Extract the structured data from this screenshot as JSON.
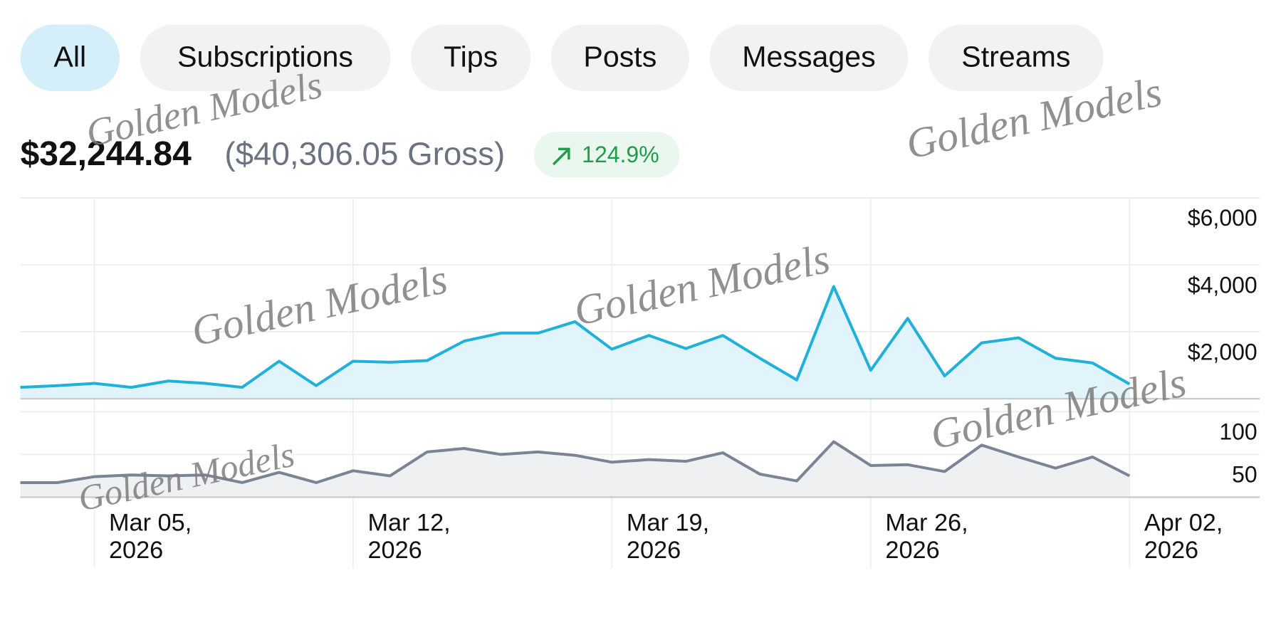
{
  "tabs": [
    "All",
    "Subscriptions",
    "Tips",
    "Posts",
    "Messages",
    "Streams"
  ],
  "active_tab": 0,
  "summary": {
    "net": "$32,244.84",
    "gross": "($40,306.05 Gross)",
    "change": "124.9%"
  },
  "watermark": "Golden Models",
  "chart_data": [
    {
      "type": "area",
      "color": "#1fb0dc",
      "fill": "#e1f3fb",
      "x": [
        "2026-03-03",
        "2026-03-04",
        "2026-03-05",
        "2026-03-06",
        "2026-03-07",
        "2026-03-08",
        "2026-03-09",
        "2026-03-10",
        "2026-03-11",
        "2026-03-12",
        "2026-03-13",
        "2026-03-14",
        "2026-03-15",
        "2026-03-16",
        "2026-03-17",
        "2026-03-18",
        "2026-03-19",
        "2026-03-20",
        "2026-03-21",
        "2026-03-22",
        "2026-03-23",
        "2026-03-24",
        "2026-03-25",
        "2026-03-26",
        "2026-03-27",
        "2026-03-28",
        "2026-03-29",
        "2026-03-30",
        "2026-03-31",
        "2026-04-01",
        "2026-04-02"
      ],
      "values": [
        340,
        390,
        460,
        340,
        530,
        460,
        340,
        1120,
        390,
        1120,
        1090,
        1140,
        1720,
        1960,
        1960,
        2300,
        1480,
        1890,
        1500,
        1890,
        1210,
        560,
        3350,
        850,
        2400,
        680,
        1670,
        1820,
        1210,
        1070,
        440
      ],
      "ylim": [
        0,
        6000
      ],
      "yticks": [
        {
          "value": 2000,
          "label": "$2,000"
        },
        {
          "value": 4000,
          "label": "$4,000"
        },
        {
          "value": 6000,
          "label": "$6,000"
        }
      ],
      "grid": true
    },
    {
      "type": "area",
      "color": "#7a8494",
      "fill": "#eff0f2",
      "x": [
        "2026-03-03",
        "2026-03-04",
        "2026-03-05",
        "2026-03-06",
        "2026-03-07",
        "2026-03-08",
        "2026-03-09",
        "2026-03-10",
        "2026-03-11",
        "2026-03-12",
        "2026-03-13",
        "2026-03-14",
        "2026-03-15",
        "2026-03-16",
        "2026-03-17",
        "2026-03-18",
        "2026-03-19",
        "2026-03-20",
        "2026-03-21",
        "2026-03-22",
        "2026-03-23",
        "2026-03-24",
        "2026-03-25",
        "2026-03-26",
        "2026-03-27",
        "2026-03-28",
        "2026-03-29",
        "2026-03-30",
        "2026-03-31",
        "2026-04-01",
        "2026-04-02"
      ],
      "values": [
        17,
        17,
        24,
        26,
        25,
        26,
        17,
        29,
        17,
        31,
        25,
        53,
        57,
        50,
        53,
        49,
        41,
        44,
        42,
        52,
        27,
        19,
        65,
        37,
        38,
        30,
        61,
        47,
        34,
        47,
        25
      ],
      "ylim": [
        0,
        100
      ],
      "yticks": [
        50,
        100
      ],
      "xticks": [
        {
          "value": "2026-03-05",
          "label": "Mar 05, 2026"
        },
        {
          "value": "2026-03-12",
          "label": "Mar 12, 2026"
        },
        {
          "value": "2026-03-19",
          "label": "Mar 19, 2026"
        },
        {
          "value": "2026-03-26",
          "label": "Mar 26, 2026"
        },
        {
          "value": "2026-04-02",
          "label": "Apr 02, 2026"
        }
      ],
      "grid": true
    }
  ]
}
